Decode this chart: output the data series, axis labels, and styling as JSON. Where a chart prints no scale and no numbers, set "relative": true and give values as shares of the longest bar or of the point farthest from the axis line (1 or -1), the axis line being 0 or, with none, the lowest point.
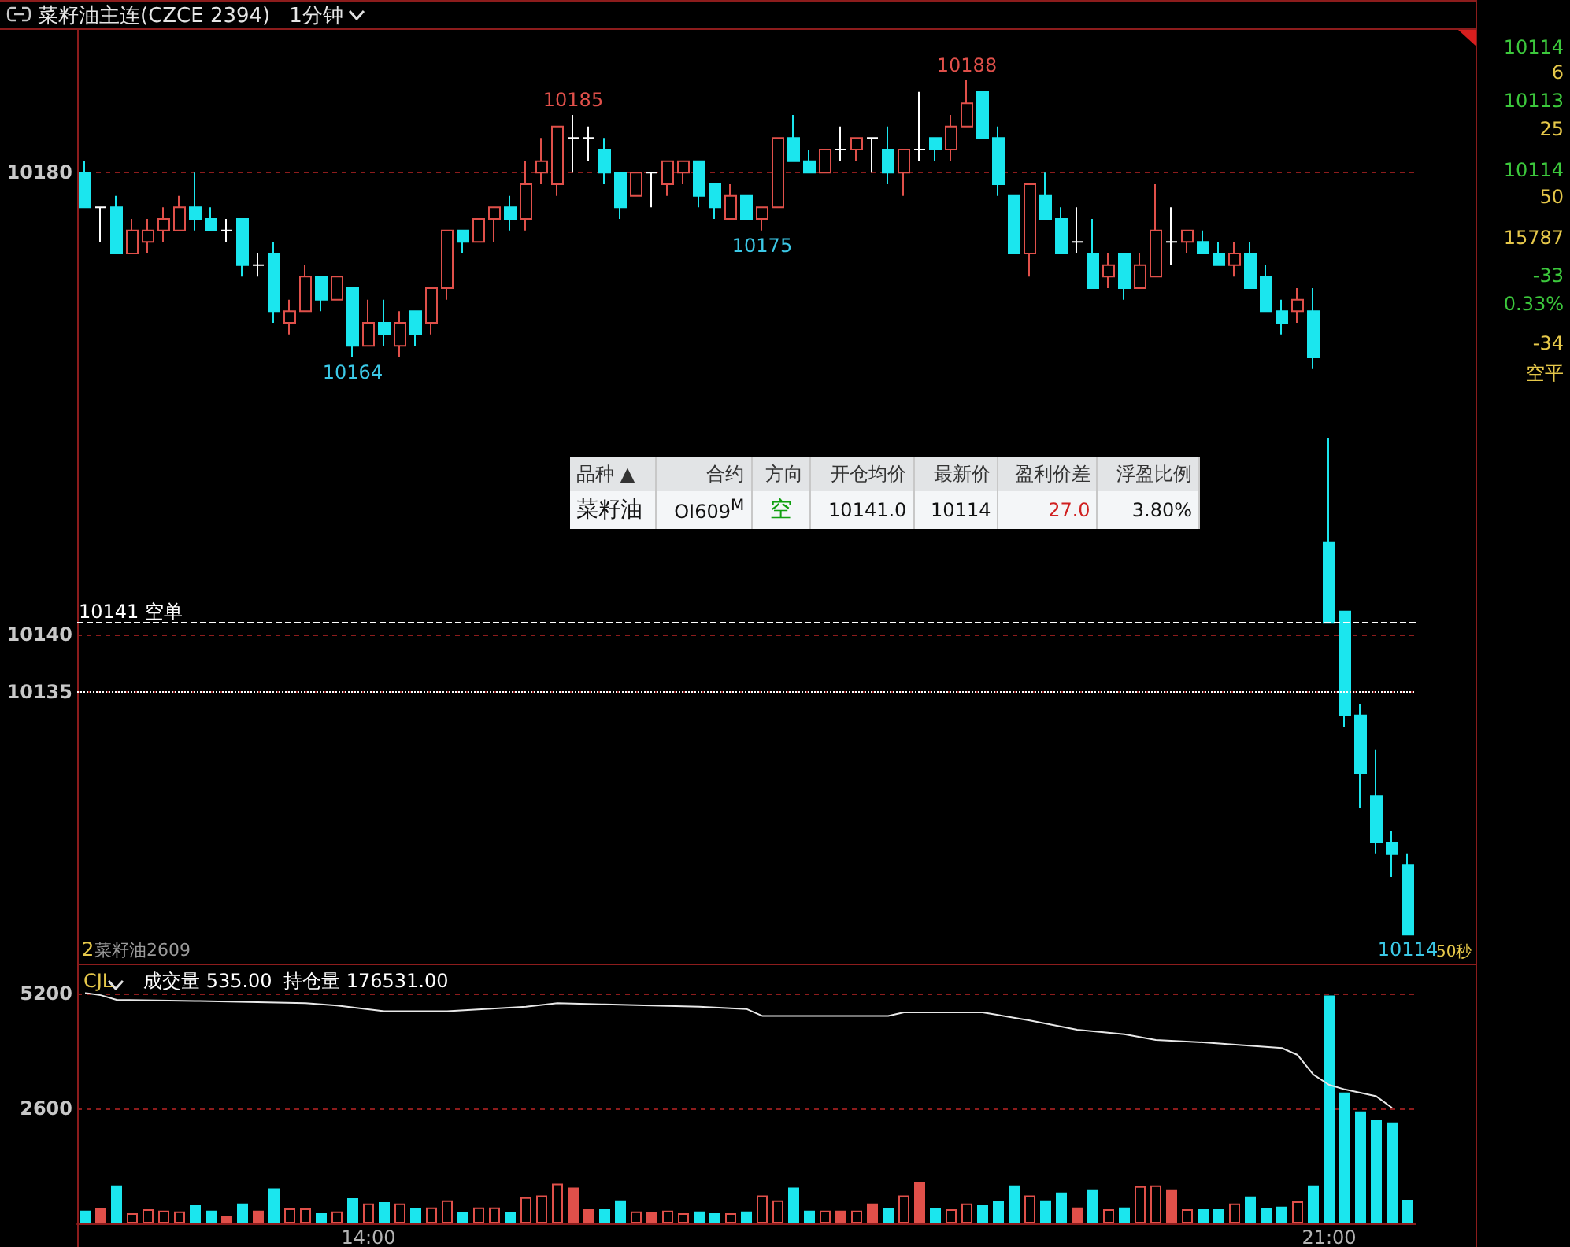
{
  "chart_data": [
    {
      "type": "candlestick",
      "title": "菜籽油主连(CZCE 2394)",
      "subtitle": "1分钟",
      "categories": [
        null,
        null,
        null,
        null,
        null,
        null,
        null,
        null,
        null,
        null,
        null,
        null,
        null,
        null,
        null,
        null,
        null,
        null,
        null,
        null,
        null,
        null,
        null,
        null,
        null,
        null,
        null,
        null,
        null,
        null,
        null,
        null,
        null,
        null,
        null,
        null,
        null,
        null,
        null,
        null,
        null,
        null,
        null,
        null,
        null,
        null,
        null,
        null,
        null,
        null,
        null,
        null,
        null,
        null,
        null,
        null,
        null,
        null,
        null,
        null,
        null,
        null,
        null,
        null,
        null,
        null,
        null,
        null,
        null,
        null,
        null,
        null,
        null,
        null,
        null,
        null,
        null,
        null,
        null,
        null,
        null,
        null,
        null,
        null,
        null
      ],
      "ohlc": [
        [
          10180,
          10181,
          10177,
          10177
        ],
        [
          10177,
          10177,
          10174,
          10177
        ],
        [
          10177,
          10178,
          10173,
          10173
        ],
        [
          10173,
          10176,
          10173,
          10175
        ],
        [
          10174,
          10176,
          10173,
          10175
        ],
        [
          10175,
          10177,
          10174,
          10176
        ],
        [
          10175,
          10178,
          10175,
          10177
        ],
        [
          10177,
          10180,
          10175,
          10176
        ],
        [
          10176,
          10177,
          10175,
          10175
        ],
        [
          10175,
          10176,
          10174,
          10175
        ],
        [
          10176,
          10176,
          10171,
          10172
        ],
        [
          10172,
          10173,
          10171,
          10172
        ],
        [
          10173,
          10174,
          10167,
          10168
        ],
        [
          10167,
          10169,
          10166,
          10168
        ],
        [
          10168,
          10172,
          10168,
          10171
        ],
        [
          10171,
          10171,
          10168,
          10169
        ],
        [
          10169,
          10171,
          10169,
          10171
        ],
        [
          10170,
          10170,
          10164,
          10165
        ],
        [
          10165,
          10169,
          10165,
          10167
        ],
        [
          10167,
          10169,
          10165,
          10166
        ],
        [
          10165,
          10168,
          10164,
          10167
        ],
        [
          10168,
          10168,
          10165,
          10166
        ],
        [
          10167,
          10170,
          10166,
          10170
        ],
        [
          10170,
          10175,
          10169,
          10175
        ],
        [
          10175,
          10175,
          10173,
          10174
        ],
        [
          10174,
          10176,
          10174,
          10176
        ],
        [
          10176,
          10177,
          10174,
          10177
        ],
        [
          10177,
          10178,
          10175,
          10176
        ],
        [
          10176,
          10181,
          10175,
          10179
        ],
        [
          10180,
          10183,
          10179,
          10181
        ],
        [
          10179,
          10184,
          10178,
          10184
        ],
        [
          10183,
          10185,
          10180,
          10183
        ],
        [
          10183,
          10184,
          10181,
          10183
        ],
        [
          10182,
          10183,
          10179,
          10180
        ],
        [
          10180,
          10180,
          10176,
          10177
        ],
        [
          10178,
          10180,
          10178,
          10180
        ],
        [
          10180,
          10180,
          10177,
          10180
        ],
        [
          10179,
          10181,
          10178,
          10181
        ],
        [
          10180,
          10181,
          10179,
          10181
        ],
        [
          10181,
          10181,
          10177,
          10178
        ],
        [
          10179,
          10179,
          10176,
          10177
        ],
        [
          10176,
          10179,
          10176,
          10178
        ],
        [
          10178,
          10178,
          10176,
          10176
        ],
        [
          10176,
          10177,
          10175,
          10177
        ],
        [
          10177,
          10183,
          10177,
          10183
        ],
        [
          10183,
          10185,
          10181,
          10181
        ],
        [
          10181,
          10182,
          10180,
          10180
        ],
        [
          10180,
          10182,
          10180,
          10182
        ],
        [
          10182,
          10184,
          10181,
          10182
        ],
        [
          10182,
          10183,
          10181,
          10183
        ],
        [
          10183,
          10183,
          10180,
          10183
        ],
        [
          10182,
          10184,
          10179,
          10180
        ],
        [
          10180,
          10182,
          10178,
          10182
        ],
        [
          10182,
          10187,
          10181,
          10182
        ],
        [
          10183,
          10183,
          10181,
          10182
        ],
        [
          10182,
          10185,
          10181,
          10184
        ],
        [
          10184,
          10188,
          10184,
          10186
        ],
        [
          10187,
          10187,
          10183,
          10183
        ],
        [
          10183,
          10184,
          10178,
          10179
        ],
        [
          10178,
          10178,
          10173,
          10173
        ],
        [
          10173,
          10179,
          10171,
          10179
        ],
        [
          10178,
          10180,
          10176,
          10176
        ],
        [
          10176,
          10177,
          10173,
          10173
        ],
        [
          10174,
          10177,
          10173,
          10174
        ],
        [
          10173,
          10176,
          10170,
          10170
        ],
        [
          10171,
          10173,
          10170,
          10172
        ],
        [
          10173,
          10173,
          10169,
          10170
        ],
        [
          10170,
          10173,
          10170,
          10172
        ],
        [
          10171,
          10179,
          10171,
          10175
        ],
        [
          10174,
          10177,
          10172,
          10174
        ],
        [
          10174,
          10175,
          10173,
          10175
        ],
        [
          10174,
          10175,
          10173,
          10173
        ],
        [
          10173,
          10174,
          10172,
          10172
        ],
        [
          10172,
          10174,
          10171,
          10173
        ],
        [
          10173,
          10174,
          10170,
          10170
        ],
        [
          10171,
          10172,
          10168,
          10168
        ],
        [
          10168,
          10169,
          10166,
          10167
        ],
        [
          10168,
          10170,
          10167,
          10169
        ],
        [
          10168,
          10170,
          10163,
          10164
        ],
        [
          10148,
          10157,
          10141,
          10141
        ],
        [
          10142,
          10142,
          10132,
          10133
        ],
        [
          10133,
          10134,
          10125,
          10128
        ],
        [
          10126,
          10130,
          10121,
          10122
        ],
        [
          10122,
          10123,
          10119,
          10121
        ],
        [
          10120,
          10121,
          10114,
          10114
        ]
      ],
      "colors": [
        "#1be6ee",
        "#ffffff",
        "#1be6ee",
        "#e0504a",
        "#e0504a",
        "#e0504a",
        "#e0504a",
        "#1be6ee",
        "#1be6ee",
        "#ffffff",
        "#1be6ee",
        "#ffffff",
        "#1be6ee",
        "#e0504a",
        "#e0504a",
        "#1be6ee",
        "#e0504a",
        "#1be6ee",
        "#e0504a",
        "#1be6ee",
        "#e0504a",
        "#1be6ee",
        "#e0504a",
        "#e0504a",
        "#1be6ee",
        "#e0504a",
        "#e0504a",
        "#1be6ee",
        "#e0504a",
        "#e0504a",
        "#e0504a",
        "#ffffff",
        "#ffffff",
        "#1be6ee",
        "#1be6ee",
        "#e0504a",
        "#ffffff",
        "#e0504a",
        "#e0504a",
        "#1be6ee",
        "#1be6ee",
        "#e0504a",
        "#1be6ee",
        "#e0504a",
        "#e0504a",
        "#1be6ee",
        "#1be6ee",
        "#e0504a",
        "#ffffff",
        "#e0504a",
        "#ffffff",
        "#1be6ee",
        "#e0504a",
        "#ffffff",
        "#1be6ee",
        "#e0504a",
        "#e0504a",
        "#1be6ee",
        "#1be6ee",
        "#1be6ee",
        "#e0504a",
        "#1be6ee",
        "#1be6ee",
        "#ffffff",
        "#1be6ee",
        "#e0504a",
        "#1be6ee",
        "#e0504a",
        "#e0504a",
        "#ffffff",
        "#e0504a",
        "#1be6ee",
        "#1be6ee",
        "#e0504a",
        "#1be6ee",
        "#1be6ee",
        "#1be6ee",
        "#e0504a",
        "#1be6ee",
        "#1be6ee",
        "#1be6ee",
        "#1be6ee",
        "#1be6ee",
        "#1be6ee",
        "#1be6ee"
      ],
      "ylim": [
        10111.5,
        10192.5
      ],
      "yticks": [
        10180,
        10140,
        10135
      ],
      "grid": "y",
      "tick_labels": "y",
      "ref_lines": [
        {
          "axis": "y",
          "value": 10141,
          "label": "10141 空单",
          "color": "#ffffff",
          "line_style": "dashed"
        },
        {
          "axis": "y",
          "value": 10135,
          "color": "#ffffff",
          "line_style": "dotted"
        }
      ],
      "annotations": [
        {
          "text": "10185",
          "y": 10185
        },
        {
          "text": "10188",
          "y": 10188
        },
        {
          "text": "10164",
          "y": 10164
        },
        {
          "text": "10175",
          "y": 10175
        },
        {
          "text": "10114",
          "y": 10114
        },
        "50秒",
        "2",
        "菜籽油2609"
      ]
    },
    {
      "type": "bar",
      "categories": [
        null,
        null,
        null,
        null,
        null,
        null,
        null,
        null,
        null,
        null,
        null,
        null,
        null,
        null,
        null,
        null,
        null,
        null,
        "14:00",
        null,
        null,
        null,
        null,
        null,
        null,
        null,
        null,
        null,
        null,
        null,
        null,
        null,
        null,
        null,
        null,
        null,
        null,
        null,
        null,
        null,
        null,
        null,
        null,
        null,
        null,
        null,
        null,
        null,
        null,
        null,
        null,
        null,
        null,
        null,
        null,
        null,
        null,
        null,
        null,
        null,
        null,
        null,
        null,
        null,
        null,
        null,
        null,
        null,
        null,
        null,
        null,
        null,
        null,
        null,
        null,
        null,
        null,
        null,
        null,
        "21:00",
        null,
        null,
        null,
        null,
        null
      ],
      "values": [
        290,
        340,
        860,
        230,
        320,
        290,
        270,
        410,
        290,
        180,
        450,
        290,
        790,
        340,
        340,
        230,
        270,
        570,
        450,
        480,
        450,
        340,
        360,
        520,
        250,
        360,
        360,
        250,
        590,
        630,
        900,
        810,
        320,
        320,
        520,
        270,
        250,
        290,
        230,
        270,
        230,
        230,
        270,
        630,
        520,
        810,
        290,
        290,
        290,
        290,
        450,
        340,
        630,
        930,
        340,
        320,
        450,
        410,
        500,
        860,
        630,
        520,
        700,
        360,
        770,
        320,
        360,
        840,
        860,
        770,
        320,
        320,
        320,
        450,
        610,
        340,
        380,
        500,
        860,
        5150,
        2960,
        2530,
        2330,
        2280,
        535
      ],
      "colors": [
        "#1be6ee",
        "#e0504a",
        "#1be6ee",
        "#e0504a",
        "#e0504a",
        "#e0504a",
        "#e0504a",
        "#1be6ee",
        "#1be6ee",
        "#e0504a",
        "#1be6ee",
        "#e0504a",
        "#1be6ee",
        "#e0504a",
        "#e0504a",
        "#1be6ee",
        "#e0504a",
        "#1be6ee",
        "#e0504a",
        "#1be6ee",
        "#e0504a",
        "#1be6ee",
        "#e0504a",
        "#e0504a",
        "#1be6ee",
        "#e0504a",
        "#e0504a",
        "#1be6ee",
        "#e0504a",
        "#e0504a",
        "#e0504a",
        "#e0504a",
        "#e0504a",
        "#1be6ee",
        "#1be6ee",
        "#e0504a",
        "#e0504a",
        "#e0504a",
        "#e0504a",
        "#1be6ee",
        "#1be6ee",
        "#e0504a",
        "#1be6ee",
        "#e0504a",
        "#e0504a",
        "#1be6ee",
        "#1be6ee",
        "#e0504a",
        "#e0504a",
        "#e0504a",
        "#e0504a",
        "#1be6ee",
        "#e0504a",
        "#e0504a",
        "#1be6ee",
        "#e0504a",
        "#e0504a",
        "#1be6ee",
        "#1be6ee",
        "#1be6ee",
        "#e0504a",
        "#1be6ee",
        "#1be6ee",
        "#e0504a",
        "#1be6ee",
        "#e0504a",
        "#1be6ee",
        "#e0504a",
        "#e0504a",
        "#e0504a",
        "#e0504a",
        "#1be6ee",
        "#1be6ee",
        "#e0504a",
        "#1be6ee",
        "#1be6ee",
        "#1be6ee",
        "#e0504a",
        "#1be6ee",
        "#1be6ee",
        "#1be6ee",
        "#1be6ee",
        "#1be6ee",
        "#1be6ee",
        "#1be6ee"
      ],
      "ylim": [
        0,
        5800
      ],
      "yticks": [
        2600,
        5200
      ],
      "grid": "y",
      "annotations": [
        "CJL",
        "成交量 535.00"
      ]
    },
    {
      "type": "line",
      "relative": true,
      "tick_labels": false,
      "marker": "none",
      "categories": [
        null,
        null,
        null,
        null,
        null,
        null,
        null,
        null,
        null,
        null,
        null,
        null,
        null,
        null,
        null,
        null,
        null,
        null,
        null,
        null,
        null,
        null,
        null,
        null,
        null,
        null,
        null,
        null,
        null,
        null,
        null,
        null,
        null,
        null,
        null,
        null,
        null,
        null,
        null,
        null,
        null,
        null,
        null,
        null,
        null,
        null,
        null,
        null,
        null,
        null,
        null,
        null,
        null,
        null,
        null,
        null,
        null,
        null,
        null,
        null,
        null,
        null,
        null,
        null,
        null,
        null,
        null,
        null,
        null,
        null,
        null,
        null,
        null,
        null,
        null,
        null,
        null,
        null,
        null,
        null,
        null,
        null,
        null,
        null,
        null
      ],
      "series": [
        {
          "color": "#e8e8e8",
          "values": [
            1,
            0.98,
            0.94,
            null,
            null,
            null,
            null,
            0.93,
            null,
            null,
            null,
            null,
            null,
            null,
            0.91,
            null,
            0.89,
            null,
            null,
            0.84,
            null,
            null,
            null,
            0.84,
            null,
            null,
            null,
            null,
            0.88,
            null,
            0.91,
            null,
            null,
            0.9,
            null,
            null,
            null,
            null,
            null,
            0.88,
            null,
            null,
            0.86,
            0.8,
            null,
            null,
            0.8,
            null,
            null,
            null,
            null,
            0.8,
            0.83,
            null,
            null,
            null,
            null,
            0.83,
            null,
            null,
            0.76,
            null,
            null,
            0.68,
            null,
            null,
            0.64,
            null,
            0.59,
            null,
            null,
            0.57,
            null,
            null,
            null,
            null,
            0.52,
            0.46,
            0.29,
            0.2,
            0.16,
            null,
            0.1,
            0,
            null
          ]
        }
      ],
      "annotations": [
        "持仓量 176531.00"
      ]
    },
    {
      "type": "other",
      "annotations": [
        "品种 ▲",
        "合约",
        "方向",
        "开仓均价",
        "最新价",
        "盈利价差",
        "浮盈比例",
        "菜籽油",
        "OI609$^{M}$",
        "空",
        "10141.0",
        "10114",
        "27.0",
        "3.80%"
      ],
      "colors": [
        "#333333",
        "#333333",
        "#333333",
        "#333333",
        "#333333",
        "#333333",
        "#333333",
        "#111111",
        "#111111",
        "#10a010",
        "#111111",
        "#111111",
        "#d02020",
        "#111111"
      ]
    },
    {
      "type": "other",
      "annotations": [
        "10114",
        "6",
        "10113",
        "25",
        "10114",
        "50",
        "15787",
        "-33",
        "0.33%",
        "-34",
        "空平"
      ],
      "colors": [
        "#3cc83c",
        "#e6c84a",
        "#3cc83c",
        "#e6c84a",
        "#3cc83c",
        "#e6c84a",
        "#e6c84a",
        "#3cc83c",
        "#3cc83c",
        "#e6c84a",
        "#e6c84a"
      ]
    }
  ]
}
